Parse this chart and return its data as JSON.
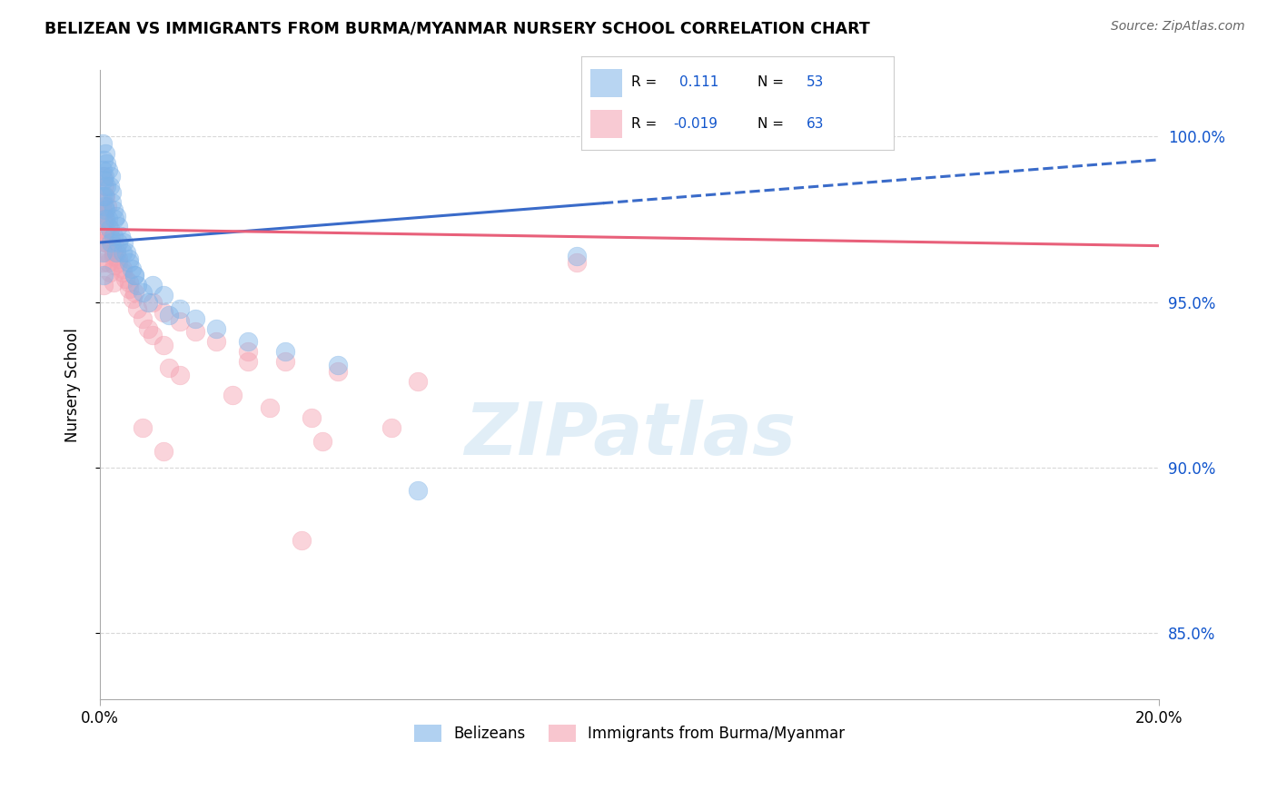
{
  "title": "BELIZEAN VS IMMIGRANTS FROM BURMA/MYANMAR NURSERY SCHOOL CORRELATION CHART",
  "source": "Source: ZipAtlas.com",
  "ylabel": "Nursery School",
  "xlim": [
    0.0,
    20.0
  ],
  "ylim": [
    83.0,
    102.0
  ],
  "yticks": [
    85.0,
    90.0,
    95.0,
    100.0
  ],
  "ytick_labels": [
    "85.0%",
    "90.0%",
    "95.0%",
    "100.0%"
  ],
  "r_belizean": "0.111",
  "n_belizean": "53",
  "r_burma": "-0.019",
  "n_burma": "63",
  "blue_color": "#7EB3E8",
  "pink_color": "#F4A0B0",
  "blue_line_color": "#3A6BC9",
  "pink_line_color": "#E8607A",
  "blue_scatter": [
    [
      0.05,
      99.8
    ],
    [
      0.1,
      99.5
    ],
    [
      0.12,
      99.2
    ],
    [
      0.15,
      99.0
    ],
    [
      0.08,
      98.8
    ],
    [
      0.18,
      98.5
    ],
    [
      0.2,
      98.8
    ],
    [
      0.22,
      98.3
    ],
    [
      0.25,
      97.8
    ],
    [
      0.28,
      97.5
    ],
    [
      0.1,
      97.8
    ],
    [
      0.15,
      97.5
    ],
    [
      0.18,
      97.2
    ],
    [
      0.2,
      96.8
    ],
    [
      0.3,
      96.5
    ],
    [
      0.05,
      98.2
    ],
    [
      0.08,
      97.9
    ],
    [
      0.12,
      98.5
    ],
    [
      0.22,
      98.0
    ],
    [
      0.3,
      97.6
    ],
    [
      0.35,
      97.3
    ],
    [
      0.4,
      97.0
    ],
    [
      0.45,
      96.8
    ],
    [
      0.5,
      96.5
    ],
    [
      0.55,
      96.3
    ],
    [
      0.6,
      96.0
    ],
    [
      0.65,
      95.8
    ],
    [
      0.7,
      95.5
    ],
    [
      0.8,
      95.3
    ],
    [
      0.9,
      95.0
    ],
    [
      0.05,
      99.0
    ],
    [
      0.06,
      99.3
    ],
    [
      0.07,
      98.7
    ],
    [
      0.09,
      98.2
    ],
    [
      0.11,
      97.5
    ],
    [
      0.25,
      97.0
    ],
    [
      0.35,
      96.8
    ],
    [
      0.42,
      96.5
    ],
    [
      0.55,
      96.2
    ],
    [
      0.65,
      95.8
    ],
    [
      1.0,
      95.5
    ],
    [
      1.2,
      95.2
    ],
    [
      1.5,
      94.8
    ],
    [
      1.8,
      94.5
    ],
    [
      2.2,
      94.2
    ],
    [
      2.8,
      93.8
    ],
    [
      3.5,
      93.5
    ],
    [
      4.5,
      93.1
    ],
    [
      6.0,
      89.3
    ],
    [
      0.05,
      96.5
    ],
    [
      0.06,
      95.8
    ],
    [
      1.3,
      94.6
    ],
    [
      9.0,
      96.4
    ]
  ],
  "pink_scatter": [
    [
      0.05,
      98.8
    ],
    [
      0.08,
      98.5
    ],
    [
      0.1,
      98.2
    ],
    [
      0.13,
      97.9
    ],
    [
      0.06,
      97.6
    ],
    [
      0.15,
      97.3
    ],
    [
      0.18,
      97.0
    ],
    [
      0.22,
      96.7
    ],
    [
      0.25,
      96.4
    ],
    [
      0.28,
      96.1
    ],
    [
      0.1,
      96.8
    ],
    [
      0.12,
      96.5
    ],
    [
      0.15,
      96.2
    ],
    [
      0.18,
      95.9
    ],
    [
      0.25,
      95.6
    ],
    [
      0.05,
      97.8
    ],
    [
      0.08,
      97.5
    ],
    [
      0.1,
      97.2
    ],
    [
      0.2,
      96.9
    ],
    [
      0.3,
      96.6
    ],
    [
      0.35,
      96.3
    ],
    [
      0.42,
      96.0
    ],
    [
      0.48,
      95.7
    ],
    [
      0.55,
      95.4
    ],
    [
      0.62,
      95.1
    ],
    [
      0.7,
      94.8
    ],
    [
      0.8,
      94.5
    ],
    [
      0.9,
      94.2
    ],
    [
      1.0,
      94.0
    ],
    [
      1.2,
      93.7
    ],
    [
      0.05,
      98.0
    ],
    [
      0.06,
      97.7
    ],
    [
      0.07,
      97.4
    ],
    [
      0.09,
      97.1
    ],
    [
      0.11,
      96.8
    ],
    [
      0.25,
      96.5
    ],
    [
      0.35,
      96.2
    ],
    [
      0.42,
      95.9
    ],
    [
      0.55,
      95.6
    ],
    [
      0.65,
      95.3
    ],
    [
      1.0,
      95.0
    ],
    [
      1.2,
      94.7
    ],
    [
      1.5,
      94.4
    ],
    [
      1.8,
      94.1
    ],
    [
      2.2,
      93.8
    ],
    [
      2.8,
      93.5
    ],
    [
      3.5,
      93.2
    ],
    [
      4.5,
      92.9
    ],
    [
      6.0,
      92.6
    ],
    [
      9.0,
      96.2
    ],
    [
      0.05,
      96.2
    ],
    [
      0.06,
      95.5
    ],
    [
      1.3,
      93.0
    ],
    [
      2.5,
      92.2
    ],
    [
      3.2,
      91.8
    ],
    [
      4.0,
      91.5
    ],
    [
      5.5,
      91.2
    ],
    [
      2.8,
      93.2
    ],
    [
      1.5,
      92.8
    ],
    [
      0.8,
      91.2
    ],
    [
      1.2,
      90.5
    ],
    [
      3.8,
      87.8
    ],
    [
      4.2,
      90.8
    ]
  ],
  "blue_trend_x": [
    0.0,
    20.0
  ],
  "blue_trend_y": [
    96.8,
    99.3
  ],
  "blue_solid_end_x": 9.5,
  "pink_trend_x": [
    0.0,
    20.0
  ],
  "pink_trend_y": [
    97.2,
    96.7
  ],
  "watermark_text": "ZIPatlas",
  "bg_color": "#ffffff",
  "grid_color": "#d8d8d8",
  "legend_color": "#1155cc",
  "bottom_legend_blue_label": "Belizeans",
  "bottom_legend_pink_label": "Immigrants from Burma/Myanmar"
}
